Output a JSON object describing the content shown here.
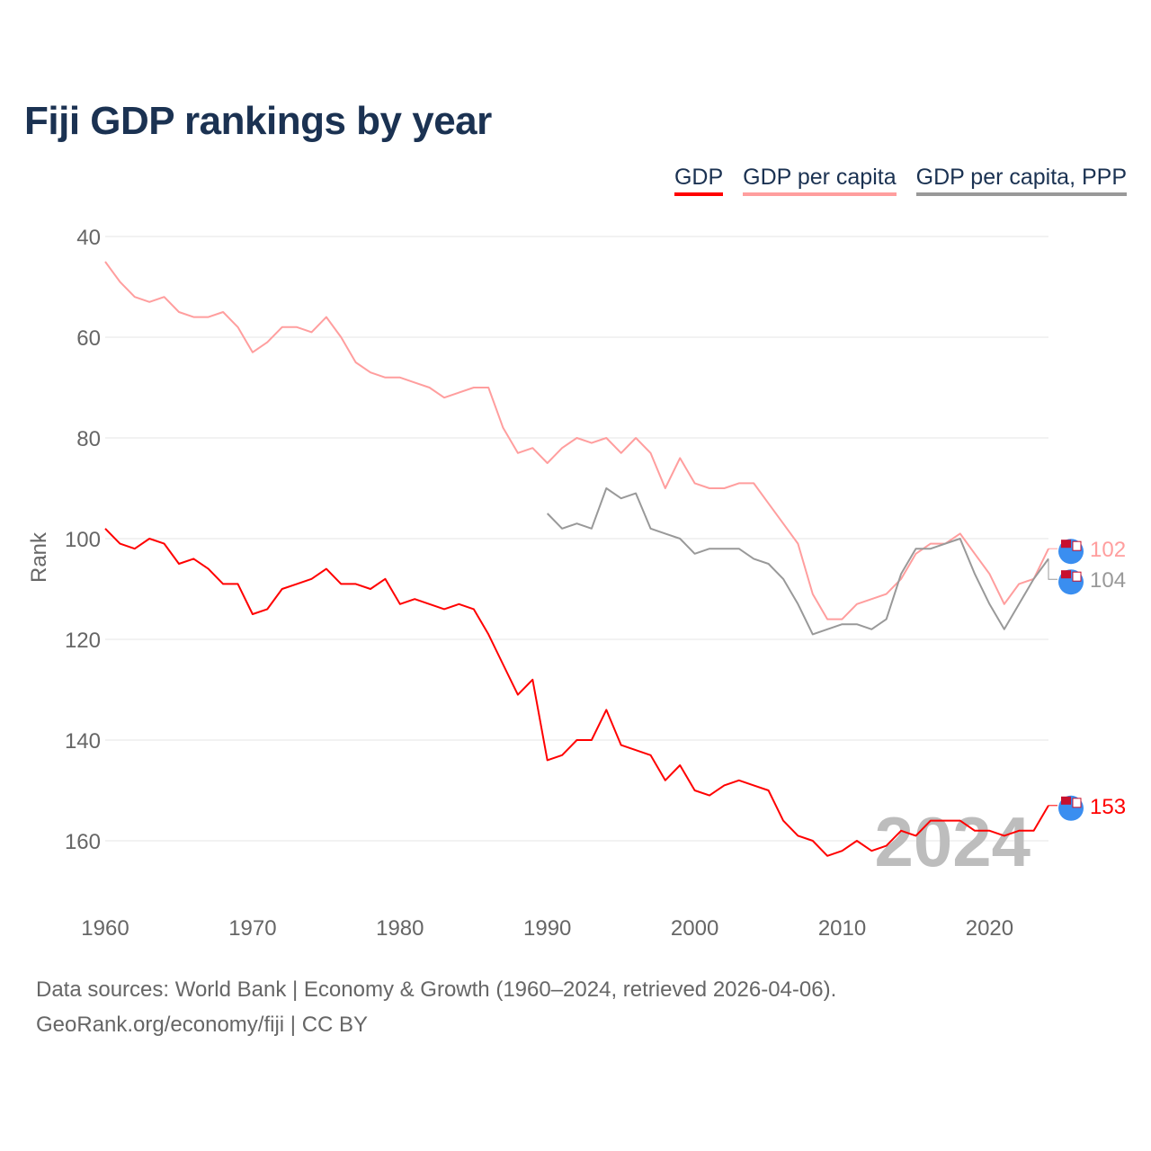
{
  "chart_data": {
    "type": "line",
    "title": "Fiji GDP rankings by year",
    "ylabel": "Rank",
    "xlabel": "",
    "xlim": [
      1960,
      2024
    ],
    "ylim": [
      40,
      172
    ],
    "y_inverted": true,
    "grid": true,
    "x_ticks": [
      1960,
      1970,
      1980,
      1990,
      2000,
      2010,
      2020
    ],
    "y_ticks": [
      40,
      60,
      80,
      100,
      120,
      140,
      160
    ],
    "legend_position": "top-right",
    "current_year": "2024",
    "series": [
      {
        "name": "GDP",
        "color": "#ff0000",
        "start_year": 1960,
        "end_label": "153",
        "values": [
          98,
          101,
          102,
          100,
          101,
          105,
          104,
          106,
          109,
          109,
          115,
          114,
          110,
          109,
          108,
          106,
          109,
          109,
          110,
          108,
          113,
          112,
          113,
          114,
          113,
          114,
          119,
          125,
          131,
          128,
          144,
          143,
          140,
          140,
          134,
          141,
          142,
          143,
          148,
          145,
          150,
          151,
          149,
          148,
          149,
          150,
          156,
          159,
          160,
          163,
          162,
          160,
          162,
          161,
          158,
          159,
          156,
          156,
          156,
          158,
          158,
          159,
          158,
          158,
          153
        ]
      },
      {
        "name": "GDP per capita",
        "color": "#ff9e9e",
        "start_year": 1960,
        "end_label": "102",
        "values": [
          45,
          49,
          52,
          53,
          52,
          55,
          56,
          56,
          55,
          58,
          63,
          61,
          58,
          58,
          59,
          56,
          60,
          65,
          67,
          68,
          68,
          69,
          70,
          72,
          71,
          70,
          70,
          78,
          83,
          82,
          85,
          82,
          80,
          81,
          80,
          83,
          80,
          83,
          90,
          84,
          89,
          90,
          90,
          89,
          89,
          93,
          97,
          101,
          111,
          116,
          116,
          113,
          112,
          111,
          108,
          103,
          101,
          101,
          99,
          103,
          107,
          113,
          109,
          108,
          102
        ]
      },
      {
        "name": "GDP per capita, PPP",
        "color": "#999999",
        "start_year": 1990,
        "end_label": "104",
        "values": [
          95,
          98,
          97,
          98,
          90,
          92,
          91,
          98,
          99,
          100,
          103,
          102,
          102,
          102,
          104,
          105,
          108,
          113,
          119,
          118,
          117,
          117,
          118,
          116,
          107,
          102,
          102,
          101,
          100,
          107,
          113,
          118,
          113,
          108,
          104
        ]
      }
    ]
  },
  "footer": {
    "line1": "Data sources: World Bank | Economy & Growth (1960–2024, retrieved 2026-04-06).",
    "line2": "GeoRank.org/economy/fiji | CC BY"
  }
}
